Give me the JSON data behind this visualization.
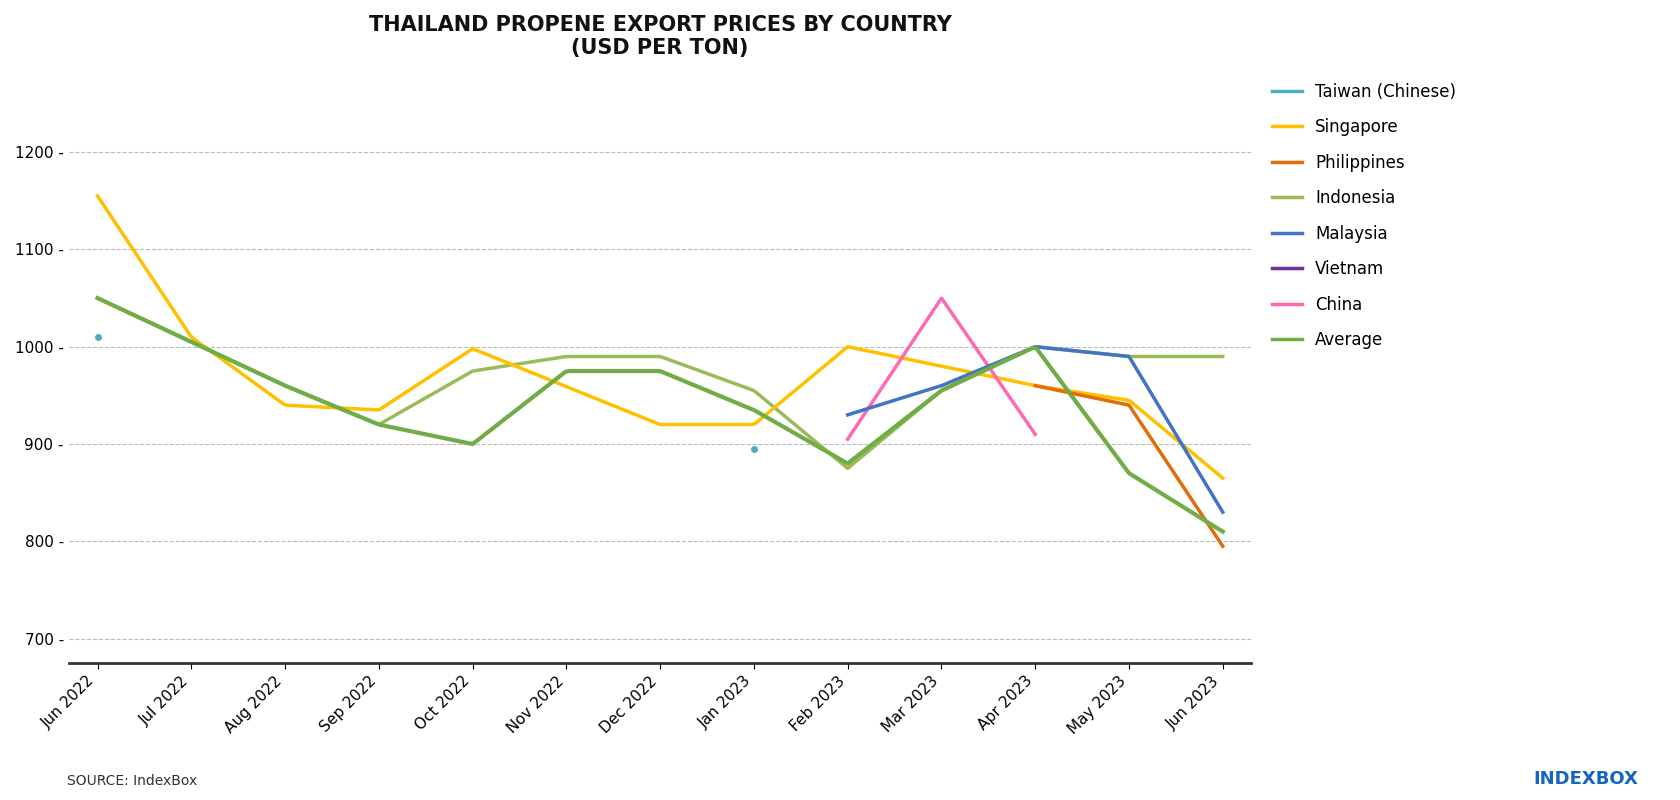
{
  "title": "THAILAND PROPENE EXPORT PRICES BY COUNTRY\n(USD PER TON)",
  "x_labels": [
    "Jun 2022",
    "Jul 2022",
    "Aug 2022",
    "Sep 2022",
    "Oct 2022",
    "Nov 2022",
    "Dec 2022",
    "Jan 2023",
    "Feb 2023",
    "Mar 2023",
    "Apr 2023",
    "May 2023",
    "Jun 2023"
  ],
  "ylim": [
    675,
    1275
  ],
  "yticks": [
    700,
    800,
    900,
    1000,
    1100,
    1200
  ],
  "series": {
    "Taiwan (Chinese)": {
      "color": "#4BACC6",
      "data": [
        1010,
        null,
        null,
        null,
        null,
        null,
        null,
        895,
        null,
        null,
        null,
        null,
        null
      ],
      "linewidth": 2.0,
      "zorder": 5,
      "dots_only": true
    },
    "Singapore": {
      "color": "#FFC000",
      "data": [
        1155,
        1010,
        940,
        935,
        998,
        null,
        920,
        920,
        1000,
        null,
        960,
        945,
        865
      ],
      "linewidth": 2.5,
      "zorder": 4
    },
    "Philippines": {
      "color": "#E36C09",
      "data": [
        null,
        null,
        null,
        null,
        null,
        null,
        null,
        null,
        null,
        null,
        960,
        940,
        795
      ],
      "linewidth": 2.5,
      "zorder": 4
    },
    "Indonesia": {
      "color": "#9BBB59",
      "data": [
        1050,
        1005,
        960,
        920,
        975,
        990,
        990,
        955,
        875,
        955,
        1000,
        990,
        990
      ],
      "linewidth": 2.5,
      "zorder": 3
    },
    "Malaysia": {
      "color": "#4472C4",
      "data": [
        null,
        null,
        null,
        null,
        null,
        null,
        null,
        null,
        930,
        960,
        1000,
        990,
        830
      ],
      "linewidth": 2.5,
      "zorder": 5
    },
    "Vietnam": {
      "color": "#7030A0",
      "data": [
        null,
        null,
        null,
        null,
        null,
        null,
        null,
        null,
        null,
        null,
        null,
        null,
        null
      ],
      "linewidth": 2.0,
      "zorder": 4,
      "dots_only": true
    },
    "China": {
      "color": "#FF69B4",
      "data": [
        null,
        null,
        null,
        null,
        null,
        null,
        null,
        null,
        905,
        1050,
        910,
        null,
        null
      ],
      "linewidth": 2.5,
      "zorder": 4
    },
    "Average": {
      "color": "#70AD47",
      "data": [
        1050,
        1005,
        960,
        920,
        900,
        975,
        975,
        935,
        880,
        955,
        1000,
        870,
        810
      ],
      "linewidth": 3.0,
      "zorder": 6
    }
  },
  "series_order": [
    "Taiwan (Chinese)",
    "Singapore",
    "Philippines",
    "Indonesia",
    "Malaysia",
    "Vietnam",
    "China",
    "Average"
  ],
  "source_text": "SOURCE: IndexBox",
  "background_color": "#FFFFFF",
  "grid_color": "#BBBBBB",
  "title_fontsize": 15,
  "legend_fontsize": 12,
  "tick_fontsize": 11
}
